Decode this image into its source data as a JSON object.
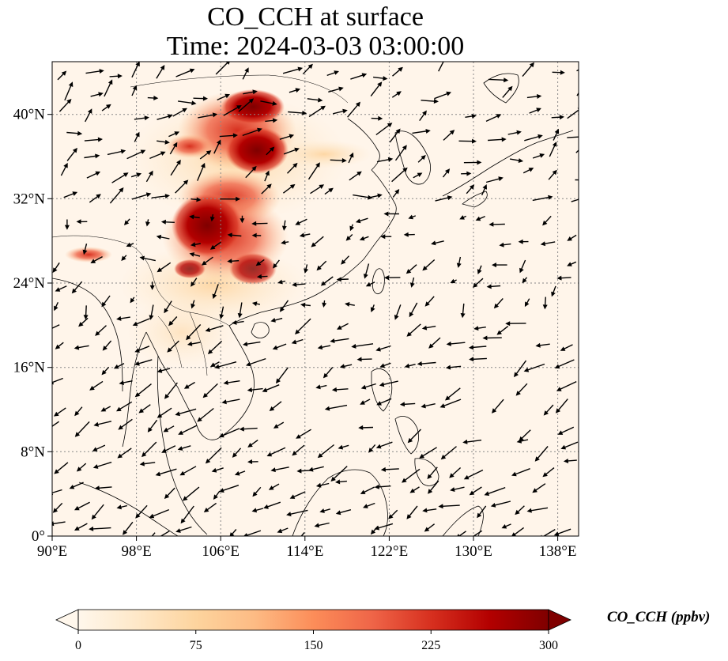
{
  "title": {
    "line1": "CO_CCH at surface",
    "line2": "Time: 2024-03-03 03:00:00"
  },
  "map": {
    "projection": "PlateCarree",
    "lon_range": [
      90,
      140
    ],
    "lat_range": [
      0,
      45
    ],
    "x_ticks": [
      "90°E",
      "98°E",
      "106°E",
      "114°E",
      "122°E",
      "130°E",
      "138°E"
    ],
    "y_ticks": [
      "0°",
      "8°N",
      "16°N",
      "24°N",
      "32°N",
      "40°N"
    ],
    "gridlines": true,
    "wind_vectors": true
  },
  "colorbar": {
    "label": "CO_CCH (ppbv)",
    "colormap": "OrRd",
    "ticks": [
      "0",
      "75",
      "150",
      "225",
      "300"
    ],
    "range": [
      0,
      300
    ],
    "extend": "both",
    "colors": [
      "#fff7ec",
      "#fee8c8",
      "#fdd49e",
      "#fdbb84",
      "#fc8d59",
      "#ef6548",
      "#d7301f",
      "#b30000",
      "#7f0000"
    ]
  }
}
